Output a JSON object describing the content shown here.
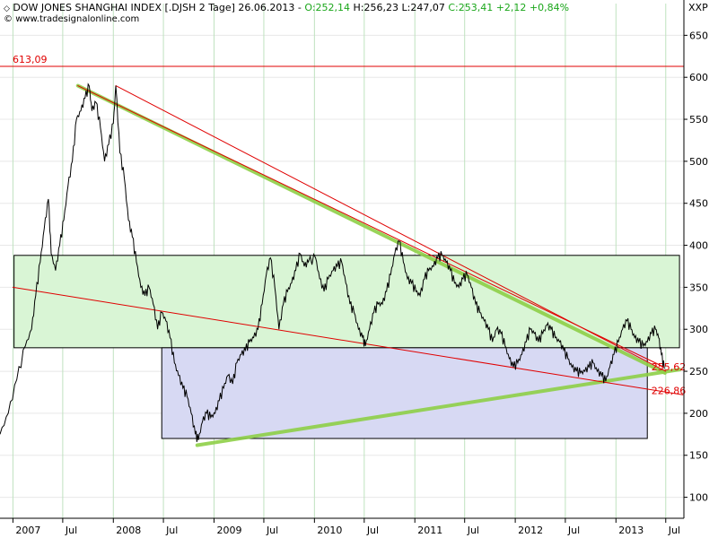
{
  "header": {
    "symbol_text": "DOW JONES SHANGHAI INDEX [.DJSH  2 Tage] 26.06.2013",
    "open": "O:252,14",
    "high": "H:256,23",
    "low": "L:247,07",
    "close": "C:253,41",
    "change": "+2,12",
    "change_pct": "+0,84%",
    "source": "www.tradesignalonline.com",
    "unit": "XXP"
  },
  "colors": {
    "price_line": "#000000",
    "resistance_line": "#e00000",
    "trend_highlight": "#8ed048",
    "upper_box_fill": "#d9f5d5",
    "lower_box_fill": "#d7d9f3",
    "grid_v": "#bfe2bf",
    "grid_h": "#e8e8e8",
    "label_red": "#e00000"
  },
  "chart_data": {
    "type": "line",
    "title": "DOW JONES SHANGHAI INDEX [.DJSH  2 Tage]",
    "x_axis": {
      "ticks": [
        "2007",
        "Jul",
        "2008",
        "Jul",
        "2009",
        "Jul",
        "2010",
        "Jul",
        "2011",
        "Jul",
        "2012",
        "Jul",
        "2013",
        "Jul"
      ],
      "tick_dates": [
        "2007-01-01",
        "2007-07-01",
        "2008-01-01",
        "2008-07-01",
        "2009-01-01",
        "2009-07-01",
        "2010-01-01",
        "2010-07-01",
        "2011-01-01",
        "2011-07-01",
        "2012-01-01",
        "2012-07-01",
        "2013-01-01",
        "2013-07-01"
      ],
      "range": [
        "2006-11-15",
        "2013-09-05"
      ]
    },
    "y_axis": {
      "ticks": [
        100,
        150,
        200,
        250,
        300,
        350,
        400,
        450,
        500,
        550,
        600,
        650
      ],
      "range": [
        75,
        660
      ],
      "position": "right"
    },
    "series": [
      {
        "points": [
          [
            "2006-11-15",
            175
          ],
          [
            "2006-12-15",
            200
          ],
          [
            "2007-01-15",
            240
          ],
          [
            "2007-02-15",
            280
          ],
          [
            "2007-03-10",
            300
          ],
          [
            "2007-03-25",
            340
          ],
          [
            "2007-04-10",
            380
          ],
          [
            "2007-04-25",
            420
          ],
          [
            "2007-05-10",
            455
          ],
          [
            "2007-05-20",
            390
          ],
          [
            "2007-06-05",
            370
          ],
          [
            "2007-06-20",
            400
          ],
          [
            "2007-07-05",
            430
          ],
          [
            "2007-07-20",
            470
          ],
          [
            "2007-08-05",
            500
          ],
          [
            "2007-08-20",
            550
          ],
          [
            "2007-09-05",
            560
          ],
          [
            "2007-09-20",
            575
          ],
          [
            "2007-10-05",
            590
          ],
          [
            "2007-10-15",
            560
          ],
          [
            "2007-10-30",
            570
          ],
          [
            "2007-11-15",
            540
          ],
          [
            "2007-11-30",
            500
          ],
          [
            "2007-12-15",
            520
          ],
          [
            "2008-01-01",
            545
          ],
          [
            "2008-01-10",
            590
          ],
          [
            "2008-01-25",
            510
          ],
          [
            "2008-02-10",
            480
          ],
          [
            "2008-02-25",
            430
          ],
          [
            "2008-03-10",
            410
          ],
          [
            "2008-03-25",
            380
          ],
          [
            "2008-04-10",
            350
          ],
          [
            "2008-04-25",
            340
          ],
          [
            "2008-05-10",
            350
          ],
          [
            "2008-05-25",
            330
          ],
          [
            "2008-06-10",
            300
          ],
          [
            "2008-06-25",
            320
          ],
          [
            "2008-07-10",
            310
          ],
          [
            "2008-07-25",
            290
          ],
          [
            "2008-08-10",
            260
          ],
          [
            "2008-08-25",
            245
          ],
          [
            "2008-09-10",
            230
          ],
          [
            "2008-09-25",
            220
          ],
          [
            "2008-10-10",
            200
          ],
          [
            "2008-10-25",
            175
          ],
          [
            "2008-11-05",
            168
          ],
          [
            "2008-11-20",
            190
          ],
          [
            "2008-12-05",
            200
          ],
          [
            "2008-12-20",
            195
          ],
          [
            "2009-01-05",
            200
          ],
          [
            "2009-01-20",
            215
          ],
          [
            "2009-02-05",
            230
          ],
          [
            "2009-02-20",
            245
          ],
          [
            "2009-03-10",
            235
          ],
          [
            "2009-03-25",
            260
          ],
          [
            "2009-04-10",
            270
          ],
          [
            "2009-04-25",
            275
          ],
          [
            "2009-05-10",
            285
          ],
          [
            "2009-05-25",
            290
          ],
          [
            "2009-06-10",
            300
          ],
          [
            "2009-06-25",
            330
          ],
          [
            "2009-07-10",
            365
          ],
          [
            "2009-07-25",
            385
          ],
          [
            "2009-08-10",
            350
          ],
          [
            "2009-08-25",
            300
          ],
          [
            "2009-09-10",
            330
          ],
          [
            "2009-09-25",
            345
          ],
          [
            "2009-10-10",
            355
          ],
          [
            "2009-10-25",
            370
          ],
          [
            "2009-11-10",
            390
          ],
          [
            "2009-11-25",
            375
          ],
          [
            "2009-12-10",
            380
          ],
          [
            "2010-01-05",
            385
          ],
          [
            "2010-01-20",
            360
          ],
          [
            "2010-02-05",
            345
          ],
          [
            "2010-02-20",
            360
          ],
          [
            "2010-03-10",
            370
          ],
          [
            "2010-03-25",
            375
          ],
          [
            "2010-04-10",
            380
          ],
          [
            "2010-04-25",
            355
          ],
          [
            "2010-05-10",
            330
          ],
          [
            "2010-05-25",
            320
          ],
          [
            "2010-06-10",
            300
          ],
          [
            "2010-06-25",
            290
          ],
          [
            "2010-07-05",
            280
          ],
          [
            "2010-07-20",
            300
          ],
          [
            "2010-08-05",
            320
          ],
          [
            "2010-08-20",
            330
          ],
          [
            "2010-09-05",
            330
          ],
          [
            "2010-09-20",
            345
          ],
          [
            "2010-10-05",
            365
          ],
          [
            "2010-10-20",
            390
          ],
          [
            "2010-11-05",
            405
          ],
          [
            "2010-11-20",
            380
          ],
          [
            "2010-12-05",
            360
          ],
          [
            "2010-12-20",
            355
          ],
          [
            "2011-01-05",
            345
          ],
          [
            "2011-01-20",
            340
          ],
          [
            "2011-02-05",
            360
          ],
          [
            "2011-02-20",
            370
          ],
          [
            "2011-03-10",
            375
          ],
          [
            "2011-03-25",
            385
          ],
          [
            "2011-04-10",
            388
          ],
          [
            "2011-04-25",
            380
          ],
          [
            "2011-05-10",
            370
          ],
          [
            "2011-05-25",
            355
          ],
          [
            "2011-06-10",
            350
          ],
          [
            "2011-06-25",
            360
          ],
          [
            "2011-07-10",
            365
          ],
          [
            "2011-07-25",
            350
          ],
          [
            "2011-08-10",
            330
          ],
          [
            "2011-08-25",
            320
          ],
          [
            "2011-09-10",
            310
          ],
          [
            "2011-09-25",
            300
          ],
          [
            "2011-10-10",
            285
          ],
          [
            "2011-10-25",
            300
          ],
          [
            "2011-11-10",
            295
          ],
          [
            "2011-11-25",
            280
          ],
          [
            "2011-12-10",
            265
          ],
          [
            "2011-12-25",
            255
          ],
          [
            "2012-01-10",
            260
          ],
          [
            "2012-01-25",
            270
          ],
          [
            "2012-02-10",
            285
          ],
          [
            "2012-02-25",
            300
          ],
          [
            "2012-03-10",
            295
          ],
          [
            "2012-03-25",
            285
          ],
          [
            "2012-04-10",
            295
          ],
          [
            "2012-04-25",
            305
          ],
          [
            "2012-05-10",
            300
          ],
          [
            "2012-05-25",
            290
          ],
          [
            "2012-06-10",
            285
          ],
          [
            "2012-06-25",
            275
          ],
          [
            "2012-07-10",
            265
          ],
          [
            "2012-07-25",
            255
          ],
          [
            "2012-08-10",
            250
          ],
          [
            "2012-08-25",
            248
          ],
          [
            "2012-09-10",
            250
          ],
          [
            "2012-09-25",
            255
          ],
          [
            "2012-10-10",
            260
          ],
          [
            "2012-10-25",
            250
          ],
          [
            "2012-11-10",
            245
          ],
          [
            "2012-11-25",
            238
          ],
          [
            "2012-12-10",
            255
          ],
          [
            "2012-12-25",
            270
          ],
          [
            "2013-01-10",
            285
          ],
          [
            "2013-01-25",
            300
          ],
          [
            "2013-02-10",
            310
          ],
          [
            "2013-02-25",
            300
          ],
          [
            "2013-03-10",
            290
          ],
          [
            "2013-03-25",
            285
          ],
          [
            "2013-04-10",
            280
          ],
          [
            "2013-04-25",
            285
          ],
          [
            "2013-05-10",
            295
          ],
          [
            "2013-05-25",
            300
          ],
          [
            "2013-06-05",
            290
          ],
          [
            "2013-06-15",
            270
          ],
          [
            "2013-06-26",
            253
          ]
        ]
      }
    ],
    "horizontal_lines": [
      {
        "value": 613.09,
        "label": "613,09"
      }
    ],
    "trend_lines": [
      {
        "from": [
          "2007-08-25",
          590
        ],
        "to": [
          "2013-06-25",
          255
        ],
        "color": "#e00000",
        "width": 1
      },
      {
        "from": [
          "2008-01-10",
          590
        ],
        "to": [
          "2013-07-01",
          250
        ],
        "color": "#e00000",
        "width": 1
      },
      {
        "from": [
          "2007-01-01",
          350
        ],
        "to": [
          "2013-09-01",
          222
        ],
        "color": "#e00000",
        "width": 1
      },
      {
        "from": [
          "2007-08-25",
          590
        ],
        "to": [
          "2013-06-28",
          248
        ],
        "color": "#8ed048",
        "width": 4
      },
      {
        "from": [
          "2008-11-01",
          162
        ],
        "to": [
          "2013-08-20",
          252
        ],
        "color": "#8ed048",
        "width": 4
      }
    ],
    "zones": [
      {
        "from": "2007-01-05",
        "to": "2013-08-20",
        "top": 388,
        "bottom": 278,
        "fill": "#d9f5d5"
      },
      {
        "from": "2008-06-25",
        "to": "2013-04-25",
        "top": 278,
        "bottom": 170,
        "fill": "#d7d9f3"
      }
    ],
    "price_labels": [
      {
        "value": 255.62,
        "label": "255,62",
        "x": "2013-07-01"
      },
      {
        "value": 226.86,
        "label": "226,86",
        "x": "2013-07-01"
      }
    ],
    "grid": true,
    "legend": "none"
  }
}
